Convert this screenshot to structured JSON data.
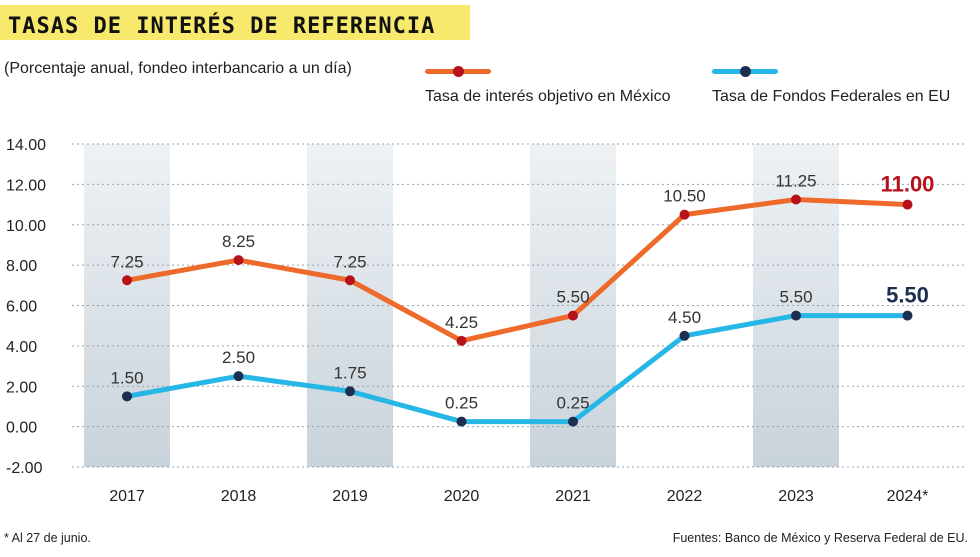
{
  "header": {
    "title": "TASAS DE INTERÉS DE REFERENCIA",
    "subtitle": "(Porcentaje anual, fondeo interbancario a un día)"
  },
  "legend": [
    {
      "label": "Tasa de interés objetivo en México",
      "color": "#ee6a2a",
      "dot": "#b5121b"
    },
    {
      "label": "Tasa de Fondos Federales en EU",
      "color": "#27b7e6",
      "dot": "#1c2f4f"
    }
  ],
  "footer": {
    "footnote": "* Al 27 de junio.",
    "source": "Fuentes: Banco de México y Reserva Federal de EU."
  },
  "chart_data": {
    "type": "line",
    "title": "TASAS DE INTERÉS DE REFERENCIA",
    "subtitle": "(Porcentaje anual, fondeo interbancario a un día)",
    "categories": [
      "2017",
      "2018",
      "2019",
      "2020",
      "2021",
      "2022",
      "2023",
      "2024*"
    ],
    "ylim": [
      -2,
      14
    ],
    "yticks": [
      "-2.00",
      "0.00",
      "2.00",
      "4.00",
      "6.00",
      "8.00",
      "10.00",
      "12.00",
      "14.00"
    ],
    "grid": true,
    "series": [
      {
        "name": "Tasa de interés objetivo en México",
        "values": [
          7.25,
          8.25,
          7.25,
          4.25,
          5.5,
          10.5,
          11.25,
          11.0
        ],
        "labels": [
          "7.25",
          "8.25",
          "7.25",
          "4.25",
          "5.50",
          "10.50",
          "11.25",
          "11.00"
        ],
        "color": "#ee6a2a",
        "marker_color": "#b5121b",
        "last_label_color": "#b5121b"
      },
      {
        "name": "Tasa de Fondos Federales en EU",
        "values": [
          1.5,
          2.5,
          1.75,
          0.25,
          0.25,
          4.5,
          5.5,
          5.5
        ],
        "labels": [
          "1.50",
          "2.50",
          "1.75",
          "0.25",
          "0.25",
          "4.50",
          "5.50",
          "5.50"
        ],
        "color": "#27b7e6",
        "marker_color": "#1c2f4f",
        "last_label_color": "#1c2f4f"
      }
    ]
  }
}
